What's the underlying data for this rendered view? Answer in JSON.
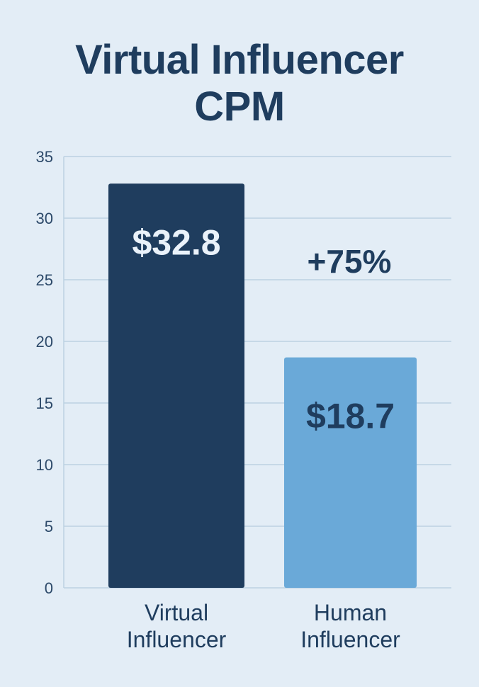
{
  "chart_data": {
    "type": "bar",
    "title_lines": [
      "Virtual Influencer",
      "CPM"
    ],
    "categories": [
      {
        "lines": [
          "Virtual",
          "Influencer"
        ]
      },
      {
        "lines": [
          "Human",
          "Influencer"
        ]
      }
    ],
    "values": [
      32.8,
      18.7
    ],
    "value_labels": [
      "$32.8",
      "$18.7"
    ],
    "bar_colors": [
      "#1f3d5e",
      "#6aa9d8"
    ],
    "value_label_colors": [
      "#eaf2fa",
      "#1f3d5e"
    ],
    "annotation": "+75%",
    "ylim": [
      0,
      35
    ],
    "yticks": [
      0,
      5,
      10,
      15,
      20,
      25,
      30,
      35
    ],
    "grid": true,
    "xlabel": "",
    "ylabel": ""
  }
}
